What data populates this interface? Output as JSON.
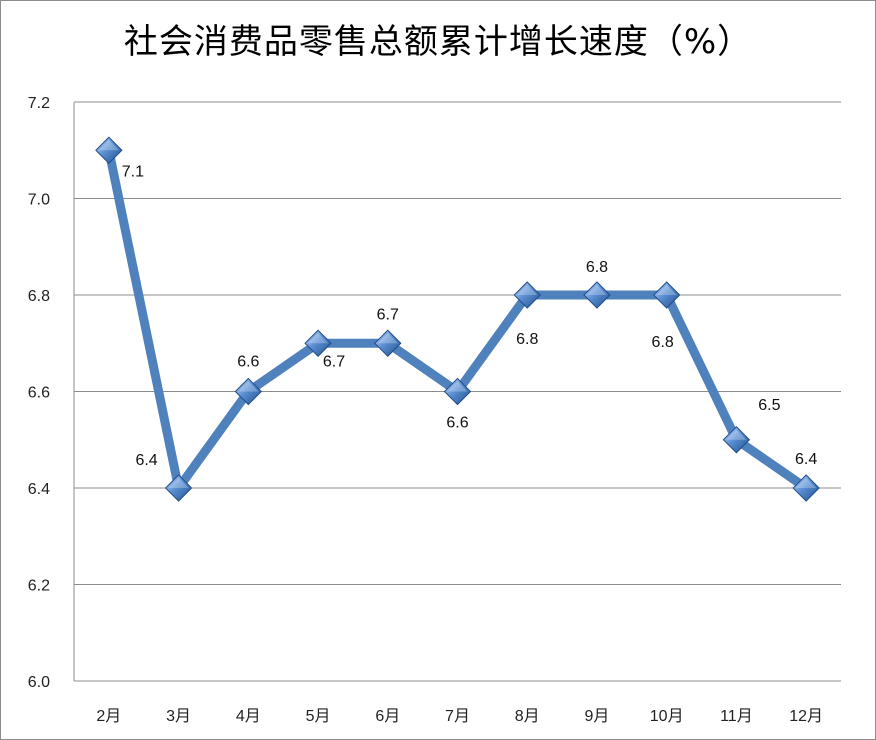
{
  "chart_data": {
    "type": "line",
    "title": "社会消费品零售总额累计增长速度（%）",
    "xlabel": "",
    "ylabel": "",
    "categories": [
      "2月",
      "3月",
      "4月",
      "5月",
      "6月",
      "7月",
      "8月",
      "9月",
      "10月",
      "11月",
      "12月"
    ],
    "series": [
      {
        "values": [
          7.1,
          6.4,
          6.6,
          6.7,
          6.7,
          6.6,
          6.8,
          6.8,
          6.8,
          6.5,
          6.4
        ]
      }
    ],
    "data_labels": [
      "7.1",
      "6.4",
      "6.6",
      "6.7",
      "6.7",
      "6.6",
      "6.8",
      "6.8",
      "6.8",
      "6.5",
      "6.4"
    ],
    "y_ticks": [
      "6.0",
      "6.2",
      "6.4",
      "6.6",
      "6.8",
      "7.0",
      "7.2"
    ],
    "ylim": [
      6.0,
      7.2
    ],
    "grid": true,
    "legend": "none",
    "colors": {
      "line": "#4f81bd",
      "marker_light": "#b9d1f0",
      "marker_dark": "#1f4e8c",
      "grid": "#8c8c8c"
    }
  }
}
